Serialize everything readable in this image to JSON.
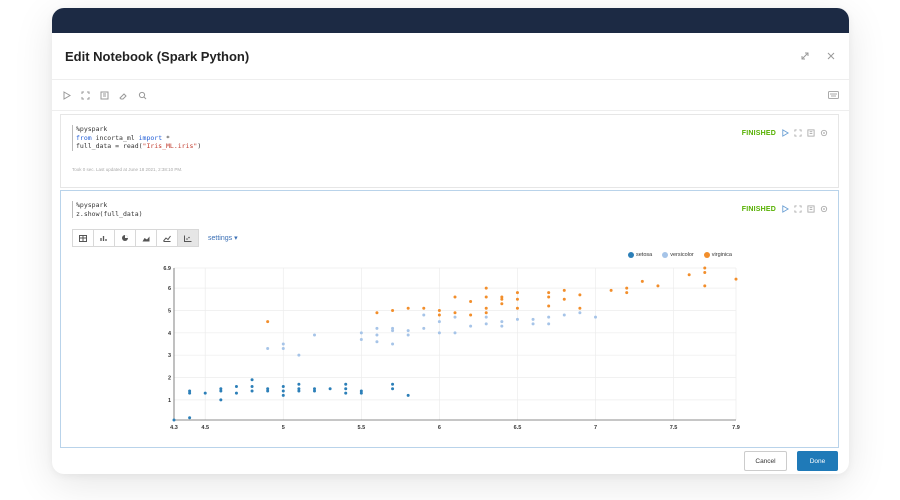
{
  "modal": {
    "title": "Edit Notebook (Spark Python)",
    "expand_icon": "expand-icon",
    "close_icon": "close-icon"
  },
  "toolbar": {
    "icons": [
      "run-icon",
      "expand-icon",
      "book-icon",
      "eraser-icon",
      "search-icon"
    ],
    "right_icon": "keyboard-icon"
  },
  "cell1": {
    "code": [
      "%pyspark",
      "from incorta_ml import *",
      "full_data = read(\"Iris_ML.iris\")"
    ],
    "meta": "Took 0 sec. Last updated at June 18 2021, 2:38:10 PM.",
    "status": "FINISHED"
  },
  "cell2": {
    "code": [
      "%pyspark",
      "z.show(full_data)"
    ],
    "status": "FINISHED",
    "settings_label": "settings ▾",
    "viz_buttons": [
      "table-icon",
      "bar-chart-icon",
      "pie-chart-icon",
      "area-chart-icon",
      "line-chart-icon",
      "scatter-chart-icon"
    ]
  },
  "chart_data": {
    "type": "scatter",
    "xlim": [
      4.3,
      7.9
    ],
    "ylim": [
      0.1,
      6.9
    ],
    "xticks": [
      "4.3",
      "4.5",
      "5",
      "5.5",
      "6",
      "6.5",
      "7",
      "7.5",
      "7.9"
    ],
    "yticks": [
      "1",
      "2",
      "3",
      "4",
      "5",
      "6",
      "6.9"
    ],
    "legend_position": "top-right",
    "series": [
      {
        "name": "setosa",
        "color": "#2c7fb8",
        "points": [
          [
            4.3,
            0.1
          ],
          [
            4.4,
            0.2
          ],
          [
            4.4,
            1.3
          ],
          [
            4.4,
            1.4
          ],
          [
            4.5,
            1.3
          ],
          [
            4.6,
            1.0
          ],
          [
            4.6,
            1.4
          ],
          [
            4.6,
            1.5
          ],
          [
            4.7,
            1.3
          ],
          [
            4.7,
            1.6
          ],
          [
            4.8,
            1.4
          ],
          [
            4.8,
            1.6
          ],
          [
            4.8,
            1.9
          ],
          [
            4.9,
            1.4
          ],
          [
            4.9,
            1.5
          ],
          [
            5.0,
            1.2
          ],
          [
            5.0,
            1.4
          ],
          [
            5.0,
            1.6
          ],
          [
            5.1,
            1.4
          ],
          [
            5.1,
            1.5
          ],
          [
            5.1,
            1.7
          ],
          [
            5.2,
            1.4
          ],
          [
            5.2,
            1.5
          ],
          [
            5.3,
            1.5
          ],
          [
            5.4,
            1.3
          ],
          [
            5.4,
            1.5
          ],
          [
            5.4,
            1.7
          ],
          [
            5.5,
            1.3
          ],
          [
            5.5,
            1.4
          ],
          [
            5.7,
            1.5
          ],
          [
            5.7,
            1.7
          ],
          [
            5.8,
            1.2
          ]
        ]
      },
      {
        "name": "versicolor",
        "color": "#a6c4e8",
        "points": [
          [
            4.9,
            3.3
          ],
          [
            5.0,
            3.3
          ],
          [
            5.0,
            3.5
          ],
          [
            5.1,
            3.0
          ],
          [
            5.2,
            3.9
          ],
          [
            5.5,
            4.0
          ],
          [
            5.5,
            3.7
          ],
          [
            5.6,
            3.6
          ],
          [
            5.6,
            3.9
          ],
          [
            5.6,
            4.2
          ],
          [
            5.7,
            3.5
          ],
          [
            5.7,
            4.1
          ],
          [
            5.7,
            4.2
          ],
          [
            5.8,
            3.9
          ],
          [
            5.8,
            4.1
          ],
          [
            5.9,
            4.2
          ],
          [
            5.9,
            4.8
          ],
          [
            6.0,
            4.0
          ],
          [
            6.0,
            4.5
          ],
          [
            6.1,
            4.0
          ],
          [
            6.1,
            4.7
          ],
          [
            6.2,
            4.3
          ],
          [
            6.3,
            4.4
          ],
          [
            6.3,
            4.7
          ],
          [
            6.4,
            4.3
          ],
          [
            6.4,
            4.5
          ],
          [
            6.5,
            4.6
          ],
          [
            6.6,
            4.4
          ],
          [
            6.6,
            4.6
          ],
          [
            6.7,
            4.4
          ],
          [
            6.7,
            4.7
          ],
          [
            6.8,
            4.8
          ],
          [
            6.9,
            4.9
          ],
          [
            7.0,
            4.7
          ]
        ]
      },
      {
        "name": "virginica",
        "color": "#f28e2b",
        "points": [
          [
            4.9,
            4.5
          ],
          [
            5.6,
            4.9
          ],
          [
            5.7,
            5.0
          ],
          [
            5.8,
            5.1
          ],
          [
            5.9,
            5.1
          ],
          [
            6.0,
            4.8
          ],
          [
            6.0,
            5.0
          ],
          [
            6.1,
            4.9
          ],
          [
            6.1,
            5.6
          ],
          [
            6.2,
            4.8
          ],
          [
            6.2,
            5.4
          ],
          [
            6.3,
            4.9
          ],
          [
            6.3,
            5.1
          ],
          [
            6.3,
            5.6
          ],
          [
            6.3,
            6.0
          ],
          [
            6.4,
            5.3
          ],
          [
            6.4,
            5.5
          ],
          [
            6.4,
            5.6
          ],
          [
            6.5,
            5.1
          ],
          [
            6.5,
            5.5
          ],
          [
            6.5,
            5.8
          ],
          [
            6.7,
            5.2
          ],
          [
            6.7,
            5.6
          ],
          [
            6.7,
            5.8
          ],
          [
            6.8,
            5.5
          ],
          [
            6.8,
            5.9
          ],
          [
            6.9,
            5.1
          ],
          [
            6.9,
            5.7
          ],
          [
            7.1,
            5.9
          ],
          [
            7.2,
            5.8
          ],
          [
            7.2,
            6.0
          ],
          [
            7.3,
            6.3
          ],
          [
            7.4,
            6.1
          ],
          [
            7.6,
            6.6
          ],
          [
            7.7,
            6.1
          ],
          [
            7.7,
            6.7
          ],
          [
            7.7,
            6.9
          ],
          [
            7.9,
            6.4
          ]
        ]
      }
    ]
  },
  "footer": {
    "cancel_label": "Cancel",
    "done_label": "Done"
  }
}
